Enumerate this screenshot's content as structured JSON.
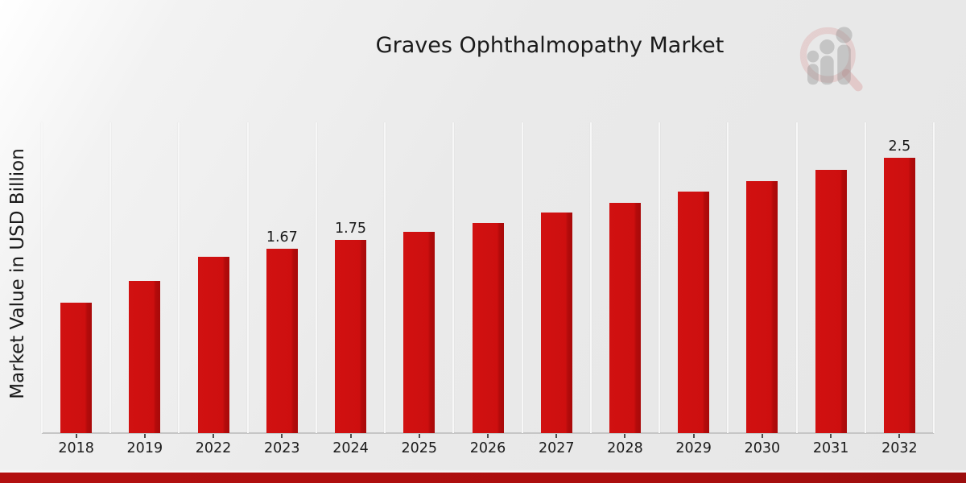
{
  "title": "Graves Ophthalmopathy Market",
  "ylabel": "Market Value in USD Billion",
  "logo_icon": "magnifier-bar-chart-watermark",
  "colors": {
    "bar": "#cc0e0e",
    "bar_edge_dark": "#a80a0a",
    "footer_bar": "#ab0e0e",
    "gridline": "#f7f7f7",
    "axis_line": "#c6c6c6",
    "text": "#1a1a1a"
  },
  "chart_data": {
    "type": "bar",
    "title": "Graves Ophthalmopathy Market",
    "xlabel": "",
    "ylabel": "Market Value in USD Billion",
    "categories": [
      "2018",
      "2019",
      "2022",
      "2023",
      "2024",
      "2025",
      "2026",
      "2027",
      "2028",
      "2029",
      "2030",
      "2031",
      "2032"
    ],
    "values": [
      1.18,
      1.38,
      1.6,
      1.67,
      1.75,
      1.83,
      1.91,
      2.0,
      2.09,
      2.19,
      2.29,
      2.39,
      2.5
    ],
    "data_labels": [
      "",
      "",
      "",
      "1.67",
      "1.75",
      "",
      "",
      "",
      "",
      "",
      "",
      "",
      "2.5"
    ],
    "ylim": [
      0,
      2.82
    ],
    "grid": "vertical-only",
    "legend": "none",
    "bar_color": "#cc0e0e",
    "units": "USD Billion"
  }
}
